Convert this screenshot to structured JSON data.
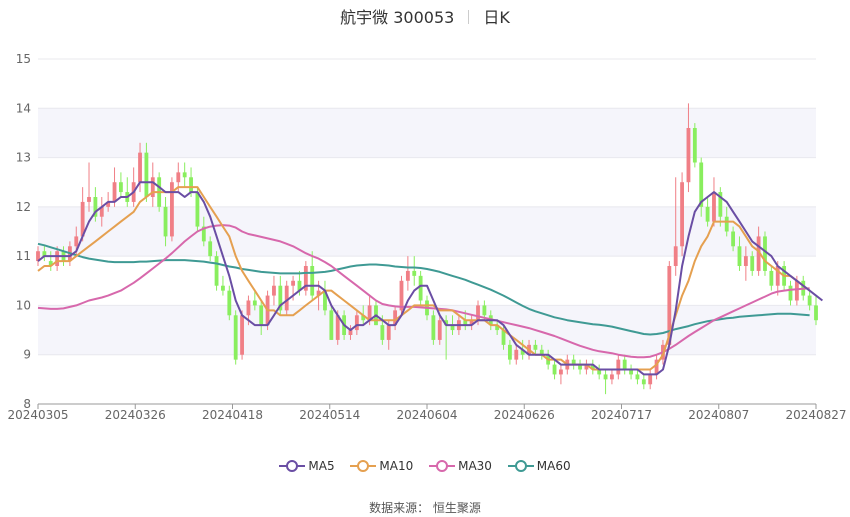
{
  "header": {
    "stock": "航宇微 300053",
    "period": "日K"
  },
  "source": "数据来源： 恒生聚源",
  "colors": {
    "up": "#f07f86",
    "down": "#89ee5e",
    "ma5": "#6a4ea4",
    "ma10": "#e5a050",
    "ma30": "#d768ac",
    "ma60": "#3f9a94",
    "band": "#f5f5fb"
  },
  "chart_data": {
    "type": "candlestick",
    "y_ticks": [
      "8",
      "9",
      "10",
      "11",
      "12",
      "13",
      "14",
      "15"
    ],
    "x_ticks": [
      "20240305",
      "20240326",
      "20240418",
      "20240514",
      "20240604",
      "20240626",
      "20240717",
      "20240807",
      "20240827"
    ],
    "ylim": [
      8,
      15
    ],
    "legend": [
      "MA5",
      "MA10",
      "MA30",
      "MA60"
    ],
    "ohlc": [
      [
        10.9,
        11.2,
        10.8,
        11.1
      ],
      [
        11.1,
        11.2,
        10.9,
        11.0
      ],
      [
        10.9,
        11.1,
        10.7,
        10.8
      ],
      [
        10.8,
        11.2,
        10.7,
        11.1
      ],
      [
        11.1,
        11.2,
        10.8,
        10.9
      ],
      [
        10.9,
        11.3,
        10.8,
        11.2
      ],
      [
        11.2,
        11.6,
        11.0,
        11.4
      ],
      [
        11.4,
        12.4,
        11.3,
        12.1
      ],
      [
        12.1,
        12.9,
        11.9,
        12.2
      ],
      [
        12.2,
        12.4,
        11.7,
        11.8
      ],
      [
        11.8,
        12.2,
        11.6,
        12.0
      ],
      [
        12.0,
        12.3,
        11.9,
        12.1
      ],
      [
        12.1,
        12.8,
        12.0,
        12.5
      ],
      [
        12.5,
        12.7,
        12.2,
        12.3
      ],
      [
        12.3,
        12.6,
        12.0,
        12.1
      ],
      [
        12.1,
        12.8,
        12.0,
        12.5
      ],
      [
        12.5,
        13.3,
        12.3,
        13.1
      ],
      [
        13.1,
        13.3,
        12.1,
        12.2
      ],
      [
        12.2,
        12.9,
        12.0,
        12.6
      ],
      [
        12.6,
        12.7,
        11.9,
        12.0
      ],
      [
        12.0,
        12.2,
        11.2,
        11.4
      ],
      [
        11.4,
        12.6,
        11.3,
        12.5
      ],
      [
        12.5,
        12.9,
        12.3,
        12.7
      ],
      [
        12.7,
        12.9,
        12.4,
        12.6
      ],
      [
        12.6,
        12.8,
        12.2,
        12.3
      ],
      [
        12.3,
        12.4,
        11.5,
        11.6
      ],
      [
        11.6,
        11.8,
        11.2,
        11.3
      ],
      [
        11.3,
        11.4,
        10.9,
        11.0
      ],
      [
        11.0,
        11.1,
        10.3,
        10.4
      ],
      [
        10.4,
        10.6,
        10.2,
        10.3
      ],
      [
        10.3,
        10.4,
        9.7,
        9.8
      ],
      [
        9.8,
        9.9,
        8.8,
        8.9
      ],
      [
        9.0,
        9.9,
        8.9,
        9.8
      ],
      [
        9.8,
        10.2,
        9.6,
        10.1
      ],
      [
        10.1,
        10.3,
        9.9,
        10.0
      ],
      [
        10.0,
        10.1,
        9.4,
        9.6
      ],
      [
        9.6,
        10.3,
        9.5,
        10.2
      ],
      [
        10.2,
        10.6,
        10.0,
        10.4
      ],
      [
        10.4,
        10.6,
        9.8,
        9.9
      ],
      [
        9.9,
        10.5,
        9.8,
        10.4
      ],
      [
        10.4,
        10.6,
        10.1,
        10.5
      ],
      [
        10.5,
        10.7,
        10.2,
        10.3
      ],
      [
        10.3,
        10.9,
        10.2,
        10.8
      ],
      [
        10.8,
        11.1,
        10.1,
        10.2
      ],
      [
        10.2,
        10.5,
        9.9,
        10.3
      ],
      [
        10.3,
        10.5,
        9.8,
        9.9
      ],
      [
        9.9,
        10.0,
        9.3,
        9.3
      ],
      [
        9.3,
        9.9,
        9.2,
        9.8
      ],
      [
        9.8,
        9.9,
        9.3,
        9.4
      ],
      [
        9.4,
        9.6,
        9.3,
        9.5
      ],
      [
        9.5,
        9.9,
        9.4,
        9.8
      ],
      [
        9.8,
        10.0,
        9.6,
        9.7
      ],
      [
        9.7,
        10.2,
        9.6,
        10.0
      ],
      [
        10.0,
        10.1,
        9.6,
        9.6
      ],
      [
        9.6,
        9.8,
        9.2,
        9.3
      ],
      [
        9.3,
        9.7,
        9.1,
        9.6
      ],
      [
        9.6,
        10.0,
        9.5,
        9.9
      ],
      [
        9.9,
        10.6,
        9.8,
        10.5
      ],
      [
        10.5,
        11.0,
        10.3,
        10.7
      ],
      [
        10.7,
        11.0,
        10.4,
        10.6
      ],
      [
        10.6,
        10.7,
        10.0,
        10.1
      ],
      [
        10.1,
        10.2,
        9.7,
        9.8
      ],
      [
        9.8,
        9.9,
        9.2,
        9.3
      ],
      [
        9.3,
        9.8,
        9.2,
        9.7
      ],
      [
        9.7,
        9.8,
        8.9,
        9.6
      ],
      [
        9.6,
        9.8,
        9.4,
        9.5
      ],
      [
        9.5,
        9.8,
        9.4,
        9.7
      ],
      [
        9.7,
        9.9,
        9.5,
        9.6
      ],
      [
        9.6,
        9.8,
        9.5,
        9.7
      ],
      [
        9.7,
        10.1,
        9.6,
        10.0
      ],
      [
        10.0,
        10.1,
        9.7,
        9.8
      ],
      [
        9.8,
        9.9,
        9.5,
        9.6
      ],
      [
        9.6,
        9.7,
        9.4,
        9.5
      ],
      [
        9.5,
        9.6,
        9.1,
        9.2
      ],
      [
        9.2,
        9.3,
        8.8,
        8.9
      ],
      [
        8.9,
        9.2,
        8.8,
        9.1
      ],
      [
        9.1,
        9.3,
        8.9,
        9.0
      ],
      [
        9.0,
        9.3,
        8.9,
        9.2
      ],
      [
        9.2,
        9.3,
        9.0,
        9.1
      ],
      [
        9.1,
        9.2,
        8.9,
        9.0
      ],
      [
        9.0,
        9.1,
        8.7,
        8.8
      ],
      [
        8.8,
        8.9,
        8.5,
        8.6
      ],
      [
        8.6,
        8.8,
        8.4,
        8.7
      ],
      [
        8.7,
        9.0,
        8.6,
        8.9
      ],
      [
        8.9,
        9.0,
        8.7,
        8.8
      ],
      [
        8.8,
        8.9,
        8.6,
        8.7
      ],
      [
        8.7,
        8.9,
        8.6,
        8.8
      ],
      [
        8.8,
        8.9,
        8.6,
        8.7
      ],
      [
        8.7,
        8.8,
        8.5,
        8.6
      ],
      [
        8.6,
        8.7,
        8.2,
        8.5
      ],
      [
        8.5,
        8.7,
        8.4,
        8.6
      ],
      [
        8.6,
        9.0,
        8.5,
        8.9
      ],
      [
        8.9,
        9.0,
        8.6,
        8.7
      ],
      [
        8.7,
        8.8,
        8.5,
        8.6
      ],
      [
        8.6,
        8.7,
        8.4,
        8.5
      ],
      [
        8.5,
        8.6,
        8.3,
        8.4
      ],
      [
        8.4,
        8.7,
        8.3,
        8.6
      ],
      [
        8.6,
        9.0,
        8.5,
        8.9
      ],
      [
        8.9,
        9.3,
        8.8,
        9.2
      ],
      [
        9.2,
        10.9,
        9.1,
        10.8
      ],
      [
        10.8,
        12.6,
        10.6,
        11.2
      ],
      [
        11.2,
        12.7,
        11.0,
        12.5
      ],
      [
        12.5,
        14.1,
        12.3,
        13.6
      ],
      [
        13.6,
        13.7,
        12.8,
        12.9
      ],
      [
        12.9,
        13.0,
        11.8,
        12.0
      ],
      [
        12.0,
        12.2,
        11.6,
        11.7
      ],
      [
        11.7,
        12.6,
        11.6,
        12.3
      ],
      [
        12.3,
        12.4,
        11.6,
        11.8
      ],
      [
        11.8,
        12.0,
        11.4,
        11.5
      ],
      [
        11.5,
        11.6,
        11.1,
        11.2
      ],
      [
        11.2,
        11.4,
        10.7,
        10.8
      ],
      [
        10.8,
        11.2,
        10.5,
        11.0
      ],
      [
        11.0,
        11.1,
        10.6,
        10.7
      ],
      [
        10.7,
        11.6,
        10.6,
        11.4
      ],
      [
        11.4,
        11.5,
        10.6,
        10.7
      ],
      [
        10.7,
        10.8,
        10.3,
        10.4
      ],
      [
        10.4,
        10.9,
        10.2,
        10.8
      ],
      [
        10.8,
        10.9,
        10.3,
        10.4
      ],
      [
        10.4,
        10.5,
        10.0,
        10.1
      ],
      [
        10.1,
        10.6,
        10.0,
        10.5
      ],
      [
        10.5,
        10.6,
        10.1,
        10.2
      ],
      [
        10.2,
        10.3,
        9.9,
        10.0
      ],
      [
        10.0,
        10.2,
        9.6,
        9.7
      ]
    ],
    "ma5": [
      10.9,
      11.0,
      11.0,
      11.0,
      11.0,
      11.0,
      11.1,
      11.4,
      11.7,
      11.9,
      12.0,
      12.1,
      12.1,
      12.2,
      12.2,
      12.3,
      12.5,
      12.5,
      12.5,
      12.4,
      12.3,
      12.3,
      12.3,
      12.2,
      12.3,
      12.3,
      12.1,
      11.8,
      11.4,
      11.0,
      10.6,
      10.1,
      9.8,
      9.7,
      9.6,
      9.6,
      9.6,
      9.8,
      10.0,
      10.1,
      10.2,
      10.3,
      10.4,
      10.4,
      10.4,
      10.3,
      10.0,
      9.8,
      9.6,
      9.5,
      9.6,
      9.6,
      9.7,
      9.8,
      9.7,
      9.6,
      9.6,
      9.8,
      10.1,
      10.3,
      10.4,
      10.4,
      10.1,
      9.8,
      9.6,
      9.6,
      9.6,
      9.6,
      9.6,
      9.7,
      9.7,
      9.7,
      9.7,
      9.6,
      9.4,
      9.2,
      9.1,
      9.0,
      9.0,
      9.0,
      9.0,
      8.9,
      8.8,
      8.8,
      8.8,
      8.8,
      8.8,
      8.8,
      8.7,
      8.7,
      8.7,
      8.7,
      8.7,
      8.7,
      8.7,
      8.6,
      8.6,
      8.6,
      8.7,
      9.2,
      9.9,
      10.8,
      11.4,
      11.9,
      12.1,
      12.2,
      12.3,
      12.2,
      12.1,
      11.9,
      11.7,
      11.5,
      11.3,
      11.2,
      11.1,
      11.0,
      10.8,
      10.7,
      10.6,
      10.5,
      10.4,
      10.3,
      10.2,
      10.1
    ],
    "ma10": [
      10.7,
      10.8,
      10.8,
      10.9,
      10.9,
      10.9,
      11.0,
      11.1,
      11.2,
      11.3,
      11.4,
      11.5,
      11.6,
      11.7,
      11.8,
      11.9,
      12.1,
      12.2,
      12.3,
      12.3,
      12.3,
      12.3,
      12.4,
      12.4,
      12.4,
      12.4,
      12.2,
      12.0,
      11.8,
      11.6,
      11.4,
      11.0,
      10.7,
      10.5,
      10.3,
      10.1,
      9.9,
      9.9,
      9.8,
      9.8,
      9.8,
      9.9,
      10.0,
      10.1,
      10.2,
      10.3,
      10.3,
      10.2,
      10.1,
      10.0,
      9.9,
      9.8,
      9.7,
      9.7,
      9.7,
      9.7,
      9.7,
      9.8,
      9.9,
      10.0,
      10.0,
      10.0,
      10.0,
      9.9,
      9.9,
      9.9,
      9.8,
      9.7,
      9.7,
      9.7,
      9.7,
      9.6,
      9.6,
      9.5,
      9.4,
      9.3,
      9.2,
      9.1,
      9.0,
      9.0,
      8.9,
      8.9,
      8.9,
      8.8,
      8.8,
      8.8,
      8.8,
      8.7,
      8.7,
      8.7,
      8.7,
      8.7,
      8.7,
      8.7,
      8.7,
      8.7,
      8.7,
      8.8,
      9.0,
      9.4,
      9.8,
      10.2,
      10.5,
      10.9,
      11.2,
      11.4,
      11.7,
      11.7,
      11.7,
      11.7,
      11.6,
      11.4,
      11.2,
      11.1,
      10.9,
      10.8,
      10.7,
      10.6,
      10.6,
      10.5,
      10.4,
      10.3
    ],
    "ma30": [
      9.95,
      9.94,
      9.93,
      9.93,
      9.94,
      9.97,
      10.0,
      10.05,
      10.1,
      10.13,
      10.16,
      10.2,
      10.25,
      10.3,
      10.38,
      10.46,
      10.55,
      10.65,
      10.75,
      10.85,
      10.95,
      11.06,
      11.18,
      11.3,
      11.4,
      11.5,
      11.56,
      11.6,
      11.62,
      11.63,
      11.62,
      11.58,
      11.5,
      11.45,
      11.42,
      11.39,
      11.36,
      11.33,
      11.3,
      11.25,
      11.2,
      11.13,
      11.06,
      11.0,
      10.95,
      10.88,
      10.8,
      10.7,
      10.6,
      10.5,
      10.4,
      10.3,
      10.2,
      10.1,
      10.03,
      10.0,
      9.98,
      9.97,
      9.97,
      9.97,
      9.96,
      9.95,
      9.94,
      9.93,
      9.92,
      9.9,
      9.87,
      9.84,
      9.81,
      9.78,
      9.75,
      9.72,
      9.69,
      9.66,
      9.63,
      9.6,
      9.57,
      9.54,
      9.5,
      9.46,
      9.42,
      9.38,
      9.33,
      9.28,
      9.23,
      9.18,
      9.14,
      9.1,
      9.07,
      9.05,
      9.03,
      9.0,
      8.98,
      8.96,
      8.95,
      8.95,
      8.96,
      9.0,
      9.05,
      9.12,
      9.2,
      9.29,
      9.38,
      9.46,
      9.54,
      9.62,
      9.7,
      9.76,
      9.82,
      9.88,
      9.94,
      10.0,
      10.06,
      10.12,
      10.18,
      10.24,
      10.28,
      10.3,
      10.32,
      10.33,
      10.34,
      10.35
    ],
    "ma60": [
      11.25,
      11.22,
      11.18,
      11.14,
      11.1,
      11.06,
      11.02,
      10.98,
      10.95,
      10.93,
      10.91,
      10.89,
      10.88,
      10.88,
      10.88,
      10.88,
      10.89,
      10.89,
      10.9,
      10.91,
      10.92,
      10.92,
      10.92,
      10.92,
      10.91,
      10.9,
      10.89,
      10.87,
      10.85,
      10.82,
      10.79,
      10.77,
      10.74,
      10.72,
      10.7,
      10.68,
      10.67,
      10.66,
      10.65,
      10.65,
      10.65,
      10.65,
      10.66,
      10.66,
      10.67,
      10.68,
      10.7,
      10.73,
      10.76,
      10.79,
      10.81,
      10.82,
      10.83,
      10.83,
      10.82,
      10.81,
      10.79,
      10.78,
      10.77,
      10.77,
      10.76,
      10.74,
      10.71,
      10.68,
      10.64,
      10.6,
      10.56,
      10.52,
      10.47,
      10.42,
      10.37,
      10.32,
      10.26,
      10.2,
      10.13,
      10.06,
      9.99,
      9.93,
      9.88,
      9.84,
      9.8,
      9.76,
      9.73,
      9.7,
      9.68,
      9.66,
      9.64,
      9.62,
      9.61,
      9.59,
      9.57,
      9.54,
      9.51,
      9.48,
      9.45,
      9.42,
      9.41,
      9.42,
      9.44,
      9.48,
      9.52,
      9.55,
      9.58,
      9.62,
      9.65,
      9.68,
      9.7,
      9.72,
      9.74,
      9.75,
      9.77,
      9.78,
      9.79,
      9.8,
      9.81,
      9.82,
      9.83,
      9.83,
      9.83,
      9.82,
      9.81,
      9.8
    ]
  }
}
